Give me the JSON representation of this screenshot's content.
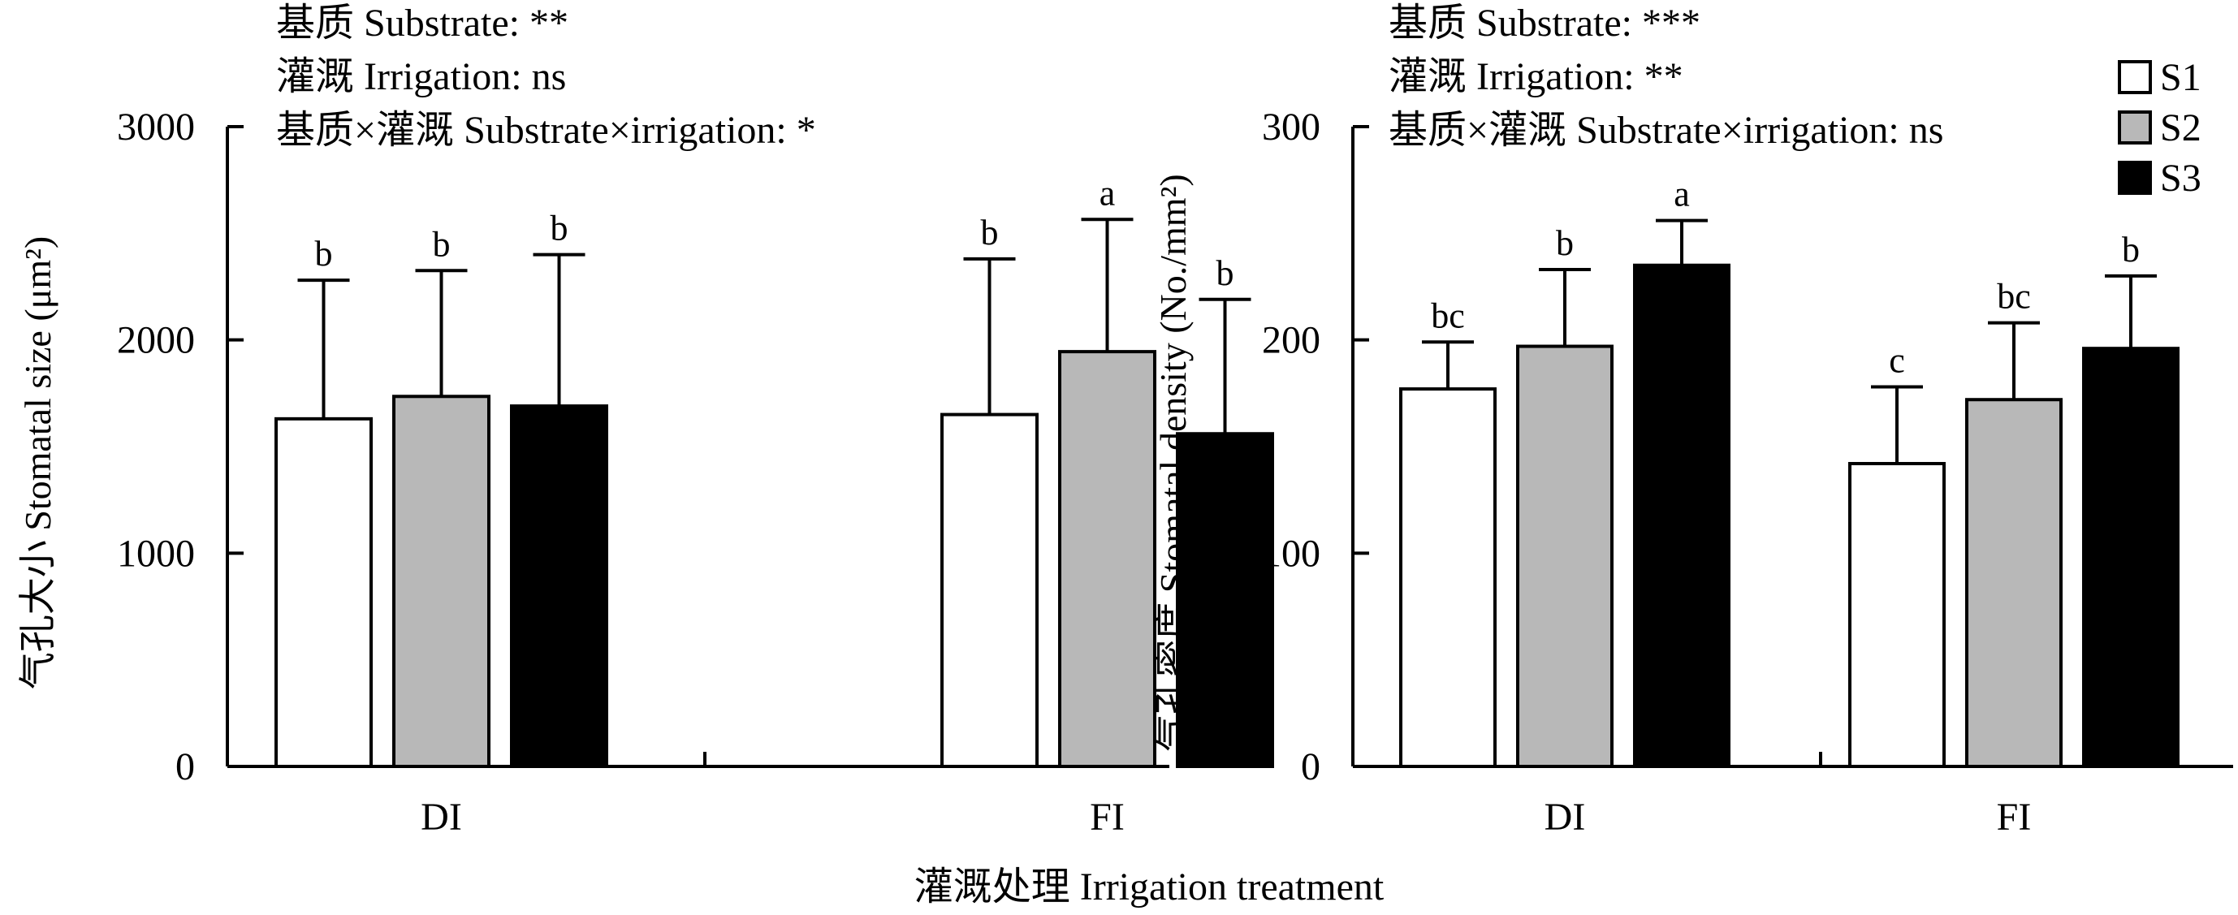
{
  "chart_data": [
    {
      "type": "bar",
      "ylabel": "气孔大小 Stomatal size (μm²)",
      "categories": [
        "DI",
        "FI"
      ],
      "ylim": [
        0,
        3000
      ],
      "yticks": [
        "0",
        "1000",
        "2000",
        "3000"
      ],
      "annotations": [
        "基质 Substrate: **",
        "灌溉 Irrigation: ns",
        "基质×灌溉 Substrate×irrigation: *"
      ],
      "series": [
        {
          "name": "S1",
          "values": [
            1630,
            1650
          ],
          "errors": [
            650,
            730
          ],
          "letters": [
            "b",
            "b"
          ]
        },
        {
          "name": "S2",
          "values": [
            1735,
            1945
          ],
          "errors": [
            590,
            620
          ],
          "letters": [
            "b",
            "a"
          ]
        },
        {
          "name": "S3",
          "values": [
            1690,
            1560
          ],
          "errors": [
            710,
            630
          ],
          "letters": [
            "b",
            "b"
          ]
        }
      ],
      "grid": false
    },
    {
      "type": "bar",
      "ylabel": "气孔密度 Stomatal density (No./mm²)",
      "categories": [
        "DI",
        "FI"
      ],
      "ylim": [
        0,
        300
      ],
      "yticks": [
        "0",
        "100",
        "200",
        "300"
      ],
      "annotations": [
        "基质 Substrate: ***",
        "灌溉 Irrigation: **",
        "基质×灌溉 Substrate×irrigation: ns"
      ],
      "series": [
        {
          "name": "S1",
          "values": [
            177,
            142
          ],
          "errors": [
            22,
            36
          ],
          "letters": [
            "bc",
            "c"
          ]
        },
        {
          "name": "S2",
          "values": [
            197,
            172
          ],
          "errors": [
            36,
            36
          ],
          "letters": [
            "b",
            "bc"
          ]
        },
        {
          "name": "S3",
          "values": [
            235,
            196
          ],
          "errors": [
            21,
            34
          ],
          "letters": [
            "a",
            "b"
          ]
        }
      ],
      "grid": false
    }
  ],
  "xlabel": "灌溉处理 Irrigation treatment",
  "legend": {
    "position": "top-right",
    "items": [
      {
        "name": "S1",
        "color": "#ffffff"
      },
      {
        "name": "S2",
        "color": "#b8b8b8"
      },
      {
        "name": "S3",
        "color": "#000000"
      }
    ]
  }
}
